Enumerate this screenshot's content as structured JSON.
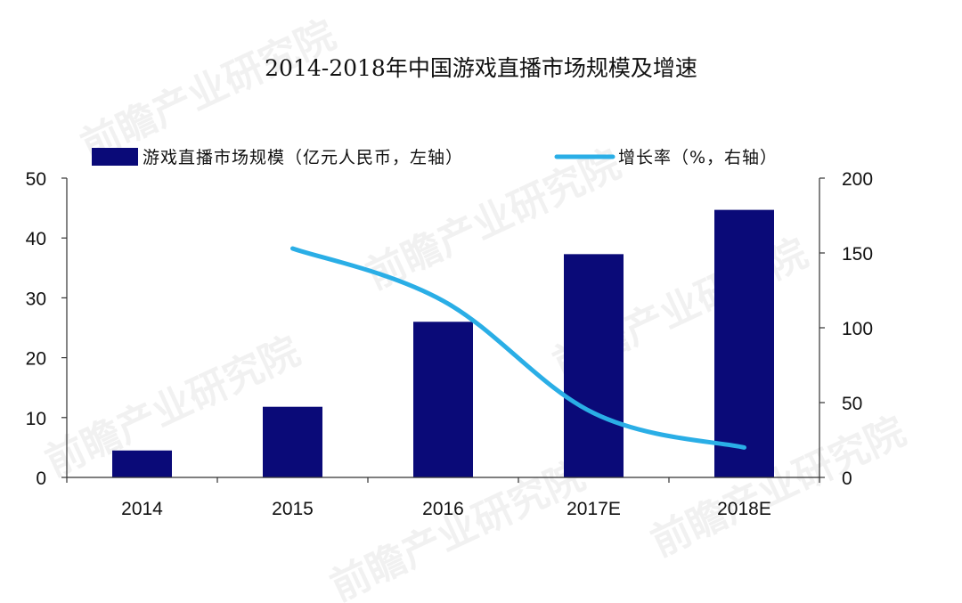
{
  "chart_data": {
    "type": "bar",
    "title": "2014-2018年中国游戏直播市场规模及增速",
    "categories": [
      "2014",
      "2015",
      "2016",
      "2017E",
      "2018E"
    ],
    "series": [
      {
        "name": "游戏直播市场规模（亿元人民币，左轴）",
        "type": "bar",
        "axis": "left",
        "color": "#0a0a78",
        "values": [
          4.5,
          11.8,
          26.0,
          37.3,
          44.7
        ]
      },
      {
        "name": "增长率（%，右轴）",
        "type": "line",
        "axis": "right",
        "color": "#2aaee6",
        "values": [
          null,
          153,
          118,
          43,
          20
        ]
      }
    ],
    "left_axis": {
      "min": 0,
      "max": 50,
      "ticks": [
        0,
        10,
        20,
        30,
        40,
        50
      ]
    },
    "right_axis": {
      "min": 0,
      "max": 200,
      "ticks": [
        0,
        50,
        100,
        150,
        200
      ]
    },
    "legend_position": "top",
    "grid": false,
    "watermark": "前瞻产业研究院"
  }
}
